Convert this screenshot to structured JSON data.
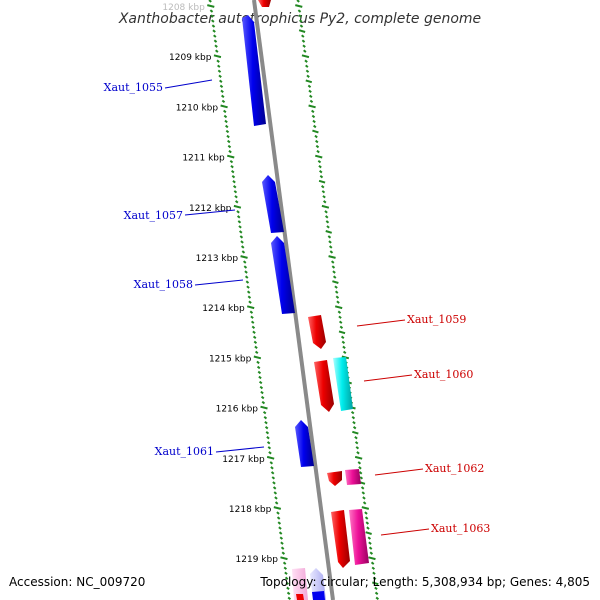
{
  "title": "Xanthobacter autotrophicus Py2, complete genome",
  "footer": {
    "accession": "Accession: NC_009720",
    "summary": "Topology: circular; Length: 5,308,934 bp; Genes: 4,805"
  },
  "colors": {
    "reverse_strand": "#0000ee",
    "forward_strand": "#ee0000",
    "forward_alt": "#00eeee",
    "forward_pink": "#ee1199",
    "backbone": "#8a8a8a",
    "ruler": "#228822",
    "label_reverse": "#0000cc",
    "label_forward": "#cc0000"
  },
  "ruler_ticks": [
    {
      "label": "1208 kbp",
      "kbp": 1208
    },
    {
      "label": "1209 kbp",
      "kbp": 1209
    },
    {
      "label": "1210 kbp",
      "kbp": 1210
    },
    {
      "label": "1211 kbp",
      "kbp": 1211
    },
    {
      "label": "1212 kbp",
      "kbp": 1212
    },
    {
      "label": "1213 kbp",
      "kbp": 1213
    },
    {
      "label": "1214 kbp",
      "kbp": 1214
    },
    {
      "label": "1215 kbp",
      "kbp": 1215
    },
    {
      "label": "1216 kbp",
      "kbp": 1216
    },
    {
      "label": "1217 kbp",
      "kbp": 1217
    },
    {
      "label": "1218 kbp",
      "kbp": 1218
    },
    {
      "label": "1219 kbp",
      "kbp": 1219
    }
  ],
  "gene_labels": [
    {
      "id": "Xaut_1055",
      "strand": "reverse"
    },
    {
      "id": "Xaut_1057",
      "strand": "reverse"
    },
    {
      "id": "Xaut_1058",
      "strand": "reverse"
    },
    {
      "id": "Xaut_1059",
      "strand": "forward"
    },
    {
      "id": "Xaut_1060",
      "strand": "forward"
    },
    {
      "id": "Xaut_1061",
      "strand": "reverse"
    },
    {
      "id": "Xaut_1062",
      "strand": "forward"
    },
    {
      "id": "Xaut_1063",
      "strand": "forward"
    }
  ]
}
